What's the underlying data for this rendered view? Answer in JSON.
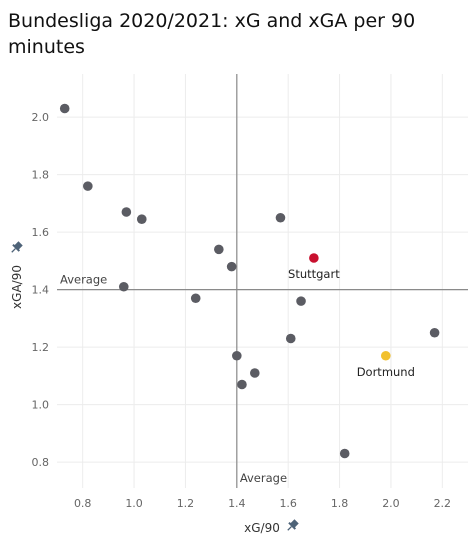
{
  "chart_data": {
    "type": "scatter",
    "title": "Bundesliga 2020/2021: xG and xGA per 90 minutes",
    "xlabel": "xG/90",
    "ylabel": "xGA/90",
    "x_axis_icon": "pin-icon",
    "y_axis_icon": "pin-icon",
    "xlim": [
      0.7,
      2.3
    ],
    "ylim": [
      0.71,
      2.15
    ],
    "x_ticks": [
      0.8,
      1.0,
      1.2,
      1.4,
      1.6,
      1.8,
      2.0,
      2.2
    ],
    "y_ticks": [
      0.8,
      1.0,
      1.2,
      1.4,
      1.6,
      1.8,
      2.0
    ],
    "grid": true,
    "reference_lines": [
      {
        "axis": "x",
        "value": 1.4,
        "label": "Average"
      },
      {
        "axis": "y",
        "value": 1.4,
        "label": "Average"
      }
    ],
    "default_color": "#5b5c63",
    "points": [
      {
        "x": 0.73,
        "y": 2.03,
        "label": "",
        "color": "#5b5c63"
      },
      {
        "x": 0.82,
        "y": 1.76,
        "label": "",
        "color": "#5b5c63"
      },
      {
        "x": 0.97,
        "y": 1.67,
        "label": "",
        "color": "#5b5c63"
      },
      {
        "x": 1.03,
        "y": 1.645,
        "label": "",
        "color": "#5b5c63"
      },
      {
        "x": 0.96,
        "y": 1.41,
        "label": "",
        "color": "#5b5c63"
      },
      {
        "x": 1.24,
        "y": 1.37,
        "label": "",
        "color": "#5b5c63"
      },
      {
        "x": 1.33,
        "y": 1.54,
        "label": "",
        "color": "#5b5c63"
      },
      {
        "x": 1.38,
        "y": 1.48,
        "label": "",
        "color": "#5b5c63"
      },
      {
        "x": 1.57,
        "y": 1.65,
        "label": "",
        "color": "#5b5c63"
      },
      {
        "x": 1.7,
        "y": 1.51,
        "label": "Stuttgart",
        "color": "#c8102e"
      },
      {
        "x": 1.65,
        "y": 1.36,
        "label": "",
        "color": "#5b5c63"
      },
      {
        "x": 1.61,
        "y": 1.23,
        "label": "",
        "color": "#5b5c63"
      },
      {
        "x": 1.4,
        "y": 1.17,
        "label": "",
        "color": "#5b5c63"
      },
      {
        "x": 1.47,
        "y": 1.11,
        "label": "",
        "color": "#5b5c63"
      },
      {
        "x": 1.42,
        "y": 1.07,
        "label": "",
        "color": "#5b5c63"
      },
      {
        "x": 1.98,
        "y": 1.17,
        "label": "Dortmund",
        "color": "#f2c12e"
      },
      {
        "x": 2.17,
        "y": 1.25,
        "label": "",
        "color": "#5b5c63"
      },
      {
        "x": 1.82,
        "y": 0.83,
        "label": "",
        "color": "#5b5c63"
      }
    ]
  }
}
